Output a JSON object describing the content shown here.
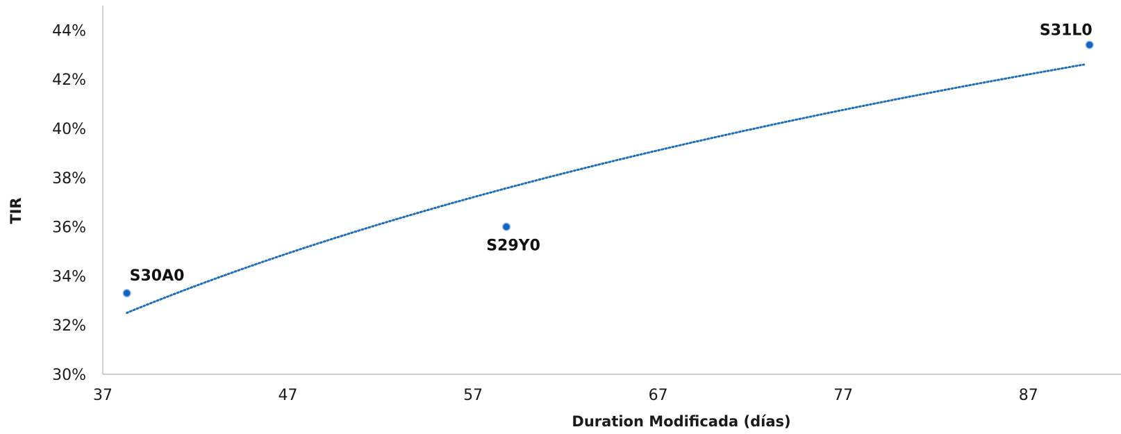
{
  "chart_data": {
    "type": "scatter",
    "title": "",
    "xlabel": "Duration Modificada (días)",
    "ylabel": "TIR",
    "xlim": [
      37,
      92
    ],
    "ylim": [
      30,
      45
    ],
    "x_ticks": [
      37,
      47,
      57,
      67,
      77,
      87
    ],
    "x_tick_labels": [
      "37",
      "47",
      "57",
      "67",
      "77",
      "87"
    ],
    "y_ticks": [
      30,
      32,
      34,
      36,
      38,
      40,
      42,
      44
    ],
    "y_tick_labels": [
      "30%",
      "32%",
      "34%",
      "36%",
      "38%",
      "40%",
      "42%",
      "44%"
    ],
    "grid": false,
    "legend": "none",
    "point_color": "#1565c0",
    "trendline_color": "#1f6fb8",
    "points": [
      {
        "label": "S30A0",
        "x": 38.3,
        "y": 33.3,
        "label_position": "above-right"
      },
      {
        "label": "S29Y0",
        "x": 58.8,
        "y": 36.0,
        "label_position": "below"
      },
      {
        "label": "S31L0",
        "x": 90.3,
        "y": 43.4,
        "label_position": "above-left"
      }
    ],
    "trendline": {
      "type": "logarithmic",
      "x_start": 38.3,
      "x_end": 90.0,
      "y_start": 32.5,
      "y_end": 42.6
    }
  }
}
